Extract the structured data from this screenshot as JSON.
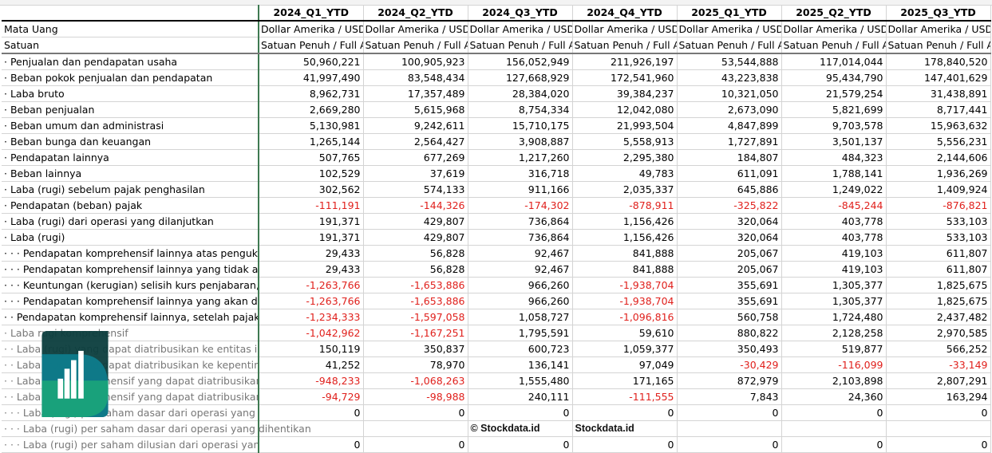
{
  "columns": [
    "2024_Q1_YTD",
    "2024_Q2_YTD",
    "2024_Q3_YTD",
    "2024_Q4_YTD",
    "2025_Q1_YTD",
    "2025_Q2_YTD",
    "2025_Q3_YTD"
  ],
  "currency": {
    "label": "Mata Uang",
    "value": "Dollar Amerika / USD"
  },
  "unit": {
    "label": "Satuan",
    "value": "Satuan Penuh / Full Amount"
  },
  "rows": [
    {
      "label": "· Penjualan dan pendapatan usaha",
      "values": [
        "50,960,221",
        "100,905,923",
        "156,052,949",
        "211,926,197",
        "53,544,888",
        "117,014,044",
        "178,840,520"
      ]
    },
    {
      "label": "· Beban pokok penjualan dan pendapatan",
      "values": [
        "41,997,490",
        "83,548,434",
        "127,668,929",
        "172,541,960",
        "43,223,838",
        "95,434,790",
        "147,401,629"
      ]
    },
    {
      "label": "· Laba bruto",
      "values": [
        "8,962,731",
        "17,357,489",
        "28,384,020",
        "39,384,237",
        "10,321,050",
        "21,579,254",
        "31,438,891"
      ]
    },
    {
      "label": "· Beban penjualan",
      "values": [
        "2,669,280",
        "5,615,968",
        "8,754,334",
        "12,042,080",
        "2,673,090",
        "5,821,699",
        "8,717,441"
      ]
    },
    {
      "label": "· Beban umum dan administrasi",
      "values": [
        "5,130,981",
        "9,242,611",
        "15,710,175",
        "21,993,504",
        "4,847,899",
        "9,703,578",
        "15,963,632"
      ]
    },
    {
      "label": "· Beban bunga dan keuangan",
      "values": [
        "1,265,144",
        "2,564,427",
        "3,908,887",
        "5,558,913",
        "1,727,891",
        "3,501,137",
        "5,556,231"
      ]
    },
    {
      "label": "· Pendapatan lainnya",
      "values": [
        "507,765",
        "677,269",
        "1,217,260",
        "2,295,380",
        "184,807",
        "484,323",
        "2,144,606"
      ]
    },
    {
      "label": "· Beban lainnya",
      "values": [
        "102,529",
        "37,619",
        "316,718",
        "49,783",
        "611,091",
        "1,788,141",
        "1,936,269"
      ]
    },
    {
      "label": "· Laba (rugi) sebelum pajak penghasilan",
      "values": [
        "302,562",
        "574,133",
        "911,166",
        "2,035,337",
        "645,886",
        "1,249,022",
        "1,409,924"
      ]
    },
    {
      "label": "· Pendapatan (beban) pajak",
      "values": [
        "-111,191",
        "-144,326",
        "-174,302",
        "-878,911",
        "-325,822",
        "-845,244",
        "-876,821"
      ]
    },
    {
      "label": "· Laba (rugi) dari operasi yang dilanjutkan",
      "values": [
        "191,371",
        "429,807",
        "736,864",
        "1,156,426",
        "320,064",
        "403,778",
        "533,103"
      ]
    },
    {
      "label": "· Laba (rugi)",
      "values": [
        "191,371",
        "429,807",
        "736,864",
        "1,156,426",
        "320,064",
        "403,778",
        "533,103"
      ]
    },
    {
      "label": "· · · Pendapatan komprehensif lainnya atas pengukuran kembali",
      "values": [
        "29,433",
        "56,828",
        "92,467",
        "841,888",
        "205,067",
        "419,103",
        "611,807"
      ]
    },
    {
      "label": "· · · Pendapatan komprehensif lainnya yang tidak akan direklasifikasi",
      "values": [
        "29,433",
        "56,828",
        "92,467",
        "841,888",
        "205,067",
        "419,103",
        "611,807"
      ]
    },
    {
      "label": "· · · Keuntungan (kerugian) selisih kurs penjabaran, setelah pajak",
      "values": [
        "-1,263,766",
        "-1,653,886",
        "966,260",
        "-1,938,704",
        "355,691",
        "1,305,377",
        "1,825,675"
      ]
    },
    {
      "label": "· · · Pendapatan komprehensif lainnya yang akan direklasifikasi",
      "values": [
        "-1,263,766",
        "-1,653,886",
        "966,260",
        "-1,938,704",
        "355,691",
        "1,305,377",
        "1,825,675"
      ]
    },
    {
      "label": "· · Pendapatan komprehensif lainnya, setelah pajak",
      "values": [
        "-1,234,333",
        "-1,597,058",
        "1,058,727",
        "-1,096,816",
        "560,758",
        "1,724,480",
        "2,437,482"
      ]
    },
    {
      "label": "· Laba rugi komprehensif",
      "muted": true,
      "values": [
        "-1,042,962",
        "-1,167,251",
        "1,795,591",
        "59,610",
        "880,822",
        "2,128,258",
        "2,970,585"
      ]
    },
    {
      "label": "· · Laba (rugi) yang dapat diatribusikan ke entitas induk",
      "muted": true,
      "values": [
        "150,119",
        "350,837",
        "600,723",
        "1,059,377",
        "350,493",
        "519,877",
        "566,252"
      ]
    },
    {
      "label": "· · Laba (rugi) yang dapat diatribusikan ke kepentingan non-pengendali",
      "muted": true,
      "values": [
        "41,252",
        "78,970",
        "136,141",
        "97,049",
        "-30,429",
        "-116,099",
        "-33,149"
      ]
    },
    {
      "label": "· · Laba rugi komprehensif yang dapat diatribusikan ke entitas induk",
      "muted": true,
      "values": [
        "-948,233",
        "-1,068,263",
        "1,555,480",
        "171,165",
        "872,979",
        "2,103,898",
        "2,807,291"
      ]
    },
    {
      "label": "· · Laba rugi komprehensif yang dapat diatribusikan ke kepentingan non-pengendali",
      "muted": true,
      "values": [
        "-94,729",
        "-98,988",
        "240,111",
        "-111,555",
        "7,843",
        "24,360",
        "163,294"
      ]
    },
    {
      "label": "· · · Laba (rugi) per saham dasar dari operasi yang dilanjutkan",
      "muted": true,
      "values": [
        "0",
        "0",
        "0",
        "0",
        "0",
        "0",
        "0"
      ]
    },
    {
      "label": "· · · Laba (rugi) per saham dasar dari operasi yang dihentikan",
      "muted": true,
      "overflow": true,
      "values": [
        "",
        "",
        "",
        "",
        "",
        "",
        ""
      ]
    },
    {
      "label": "· · · Laba (rugi) per saham dilusian dari operasi yang dilanjutkan",
      "muted": true,
      "values": [
        "0",
        "0",
        "0",
        "0",
        "0",
        "0",
        "0"
      ]
    }
  ],
  "watermark": {
    "small": "© Stockdata.id",
    "big": "Stockdata.id"
  },
  "colors": {
    "negative": "#e0201c",
    "grid": "#d4d4d4",
    "freeze_line": "#3f7a52",
    "logo_dark": "#0b3d3d",
    "logo_mid": "#0e7c8c",
    "logo_green": "#1aa37a"
  }
}
